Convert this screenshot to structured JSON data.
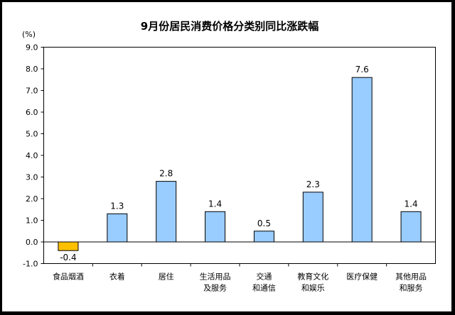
{
  "chart_data": {
    "type": "bar",
    "title": "9月份居民消费价格分类别同比涨跌幅",
    "unit": "(%)",
    "categories": [
      [
        "食品烟酒"
      ],
      [
        "衣着"
      ],
      [
        "居住"
      ],
      [
        "生活用品",
        "及服务"
      ],
      [
        "交通",
        "和通信"
      ],
      [
        "教育文化",
        "和娱乐"
      ],
      [
        "医疗保健"
      ],
      [
        "其他用品",
        "和服务"
      ]
    ],
    "values": [
      -0.4,
      1.3,
      2.8,
      1.4,
      0.5,
      2.3,
      7.6,
      1.4
    ],
    "data_labels": [
      "-0.4",
      "1.3",
      "2.8",
      "1.4",
      "0.5",
      "2.3",
      "7.6",
      "1.4"
    ],
    "ylim": [
      -1.0,
      9.0
    ],
    "yticks": [
      "-1.0",
      "0.0",
      "1.0",
      "2.0",
      "3.0",
      "4.0",
      "5.0",
      "6.0",
      "7.0",
      "8.0",
      "9.0"
    ],
    "grid": false,
    "colors": {
      "positive_bar": "#99ccff",
      "negative_bar": "#ffc000",
      "bar_outline": "#000000",
      "border": "#000000"
    }
  }
}
